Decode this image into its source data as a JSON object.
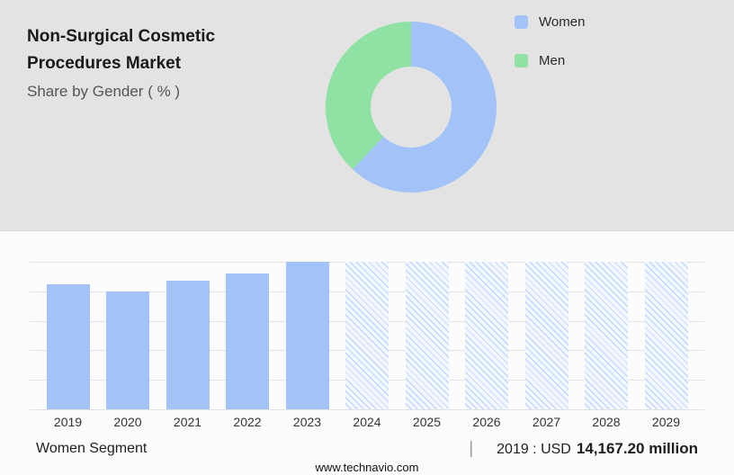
{
  "header": {
    "title": "Non-Surgical Cosmetic Procedures Market",
    "subtitle": "Share by Gender ( % )"
  },
  "donut": {
    "type": "donut",
    "hole_color": "#e3e3e3",
    "segments": [
      {
        "label": "Women",
        "value": 62,
        "color": "#a3c3f8"
      },
      {
        "label": "Men",
        "value": 38,
        "color": "#90e2a4"
      }
    ]
  },
  "chart_data": {
    "type": "bar",
    "title": "",
    "xlabel": "",
    "ylabel": "",
    "categories": [
      "2019",
      "2020",
      "2021",
      "2022",
      "2023",
      "2024",
      "2025",
      "2026",
      "2027",
      "2028",
      "2029"
    ],
    "values_relative": [
      0.85,
      0.8,
      0.87,
      0.92,
      1.0,
      1.0,
      1.0,
      1.0,
      1.0,
      1.0,
      1.0
    ],
    "forecast_start_index": 5,
    "bar_color": "#a3c3f8",
    "hatch_line_color": "#b5cef9",
    "hatch_bg_color": "#f3f7ff",
    "gridline_count": 6,
    "grid": true,
    "legend_position": "top-right",
    "known_point": {
      "year": "2019",
      "value": "14,167.20",
      "unit": "USD million"
    }
  },
  "footer": {
    "segment_label": "Women Segment",
    "separator": "|",
    "value_prefix": "2019 : USD",
    "value_amount": "14,167.20 million",
    "website": "www.technavio.com"
  }
}
